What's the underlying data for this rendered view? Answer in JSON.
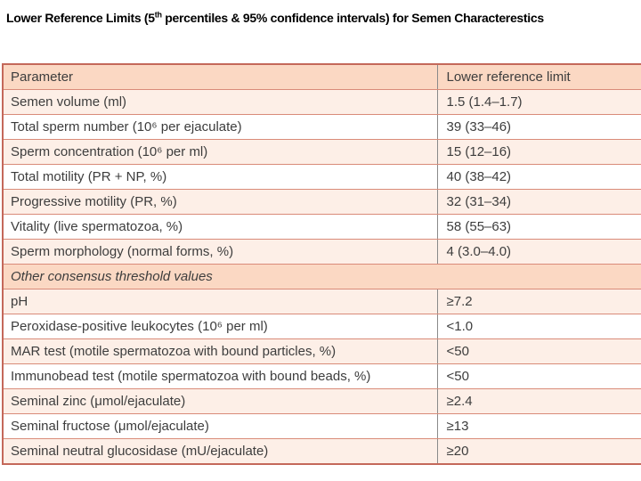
{
  "title": {
    "prefix": "Lower Reference Limits (5",
    "superscript": "th",
    "suffix": " percentiles & 95% confidence intervals) for Semen Characterestics"
  },
  "table": {
    "type": "table",
    "columns": [
      "Parameter",
      "Lower reference limit"
    ],
    "rows": [
      {
        "type": "light",
        "parameter": "Semen volume (ml)",
        "value": "1.5 (1.4–1.7)"
      },
      {
        "type": "white",
        "parameter": "Total sperm number (10⁶ per ejaculate)",
        "value": "39 (33–46)"
      },
      {
        "type": "light",
        "parameter": "Sperm concentration (10⁶ per ml)",
        "value": "15 (12–16)"
      },
      {
        "type": "white",
        "parameter": "Total motility (PR + NP, %)",
        "value": "40 (38–42)"
      },
      {
        "type": "light",
        "parameter": "Progressive motility (PR, %)",
        "value": "32 (31–34)"
      },
      {
        "type": "white",
        "parameter": "Vitality (live spermatozoa, %)",
        "value": "58 (55–63)"
      },
      {
        "type": "light",
        "parameter": "Sperm morphology (normal forms, %)",
        "value": "4 (3.0–4.0)"
      },
      {
        "type": "section",
        "parameter": "Other consensus threshold values",
        "value": ""
      },
      {
        "type": "light",
        "parameter": "pH",
        "value": "≥7.2"
      },
      {
        "type": "white",
        "parameter": "Peroxidase-positive leukocytes (10⁶ per ml)",
        "value": "<1.0"
      },
      {
        "type": "light",
        "parameter": "MAR test (motile spermatozoa with bound particles, %)",
        "value": "<50"
      },
      {
        "type": "white",
        "parameter": "Immunobead test (motile spermatozoa with bound beads, %)",
        "value": "<50"
      },
      {
        "type": "light",
        "parameter": "Seminal zinc (μmol/ejaculate)",
        "value": "≥2.4"
      },
      {
        "type": "white",
        "parameter": "Seminal fructose (μmol/ejaculate)",
        "value": "≥13"
      },
      {
        "type": "light",
        "parameter": "Seminal neutral glucosidase (mU/ejaculate)",
        "value": "≥20"
      }
    ]
  },
  "colors": {
    "title_text": "#000000",
    "text": "#3d3d3d",
    "header_bg": "#fbd8c3",
    "section_bg": "#fbd8c3",
    "row_light_bg": "#fdefe7",
    "row_white_bg": "#ffffff",
    "row_border": "#d98b79",
    "outer_border": "#c4685a",
    "column_divider": "#8a8a8a"
  }
}
